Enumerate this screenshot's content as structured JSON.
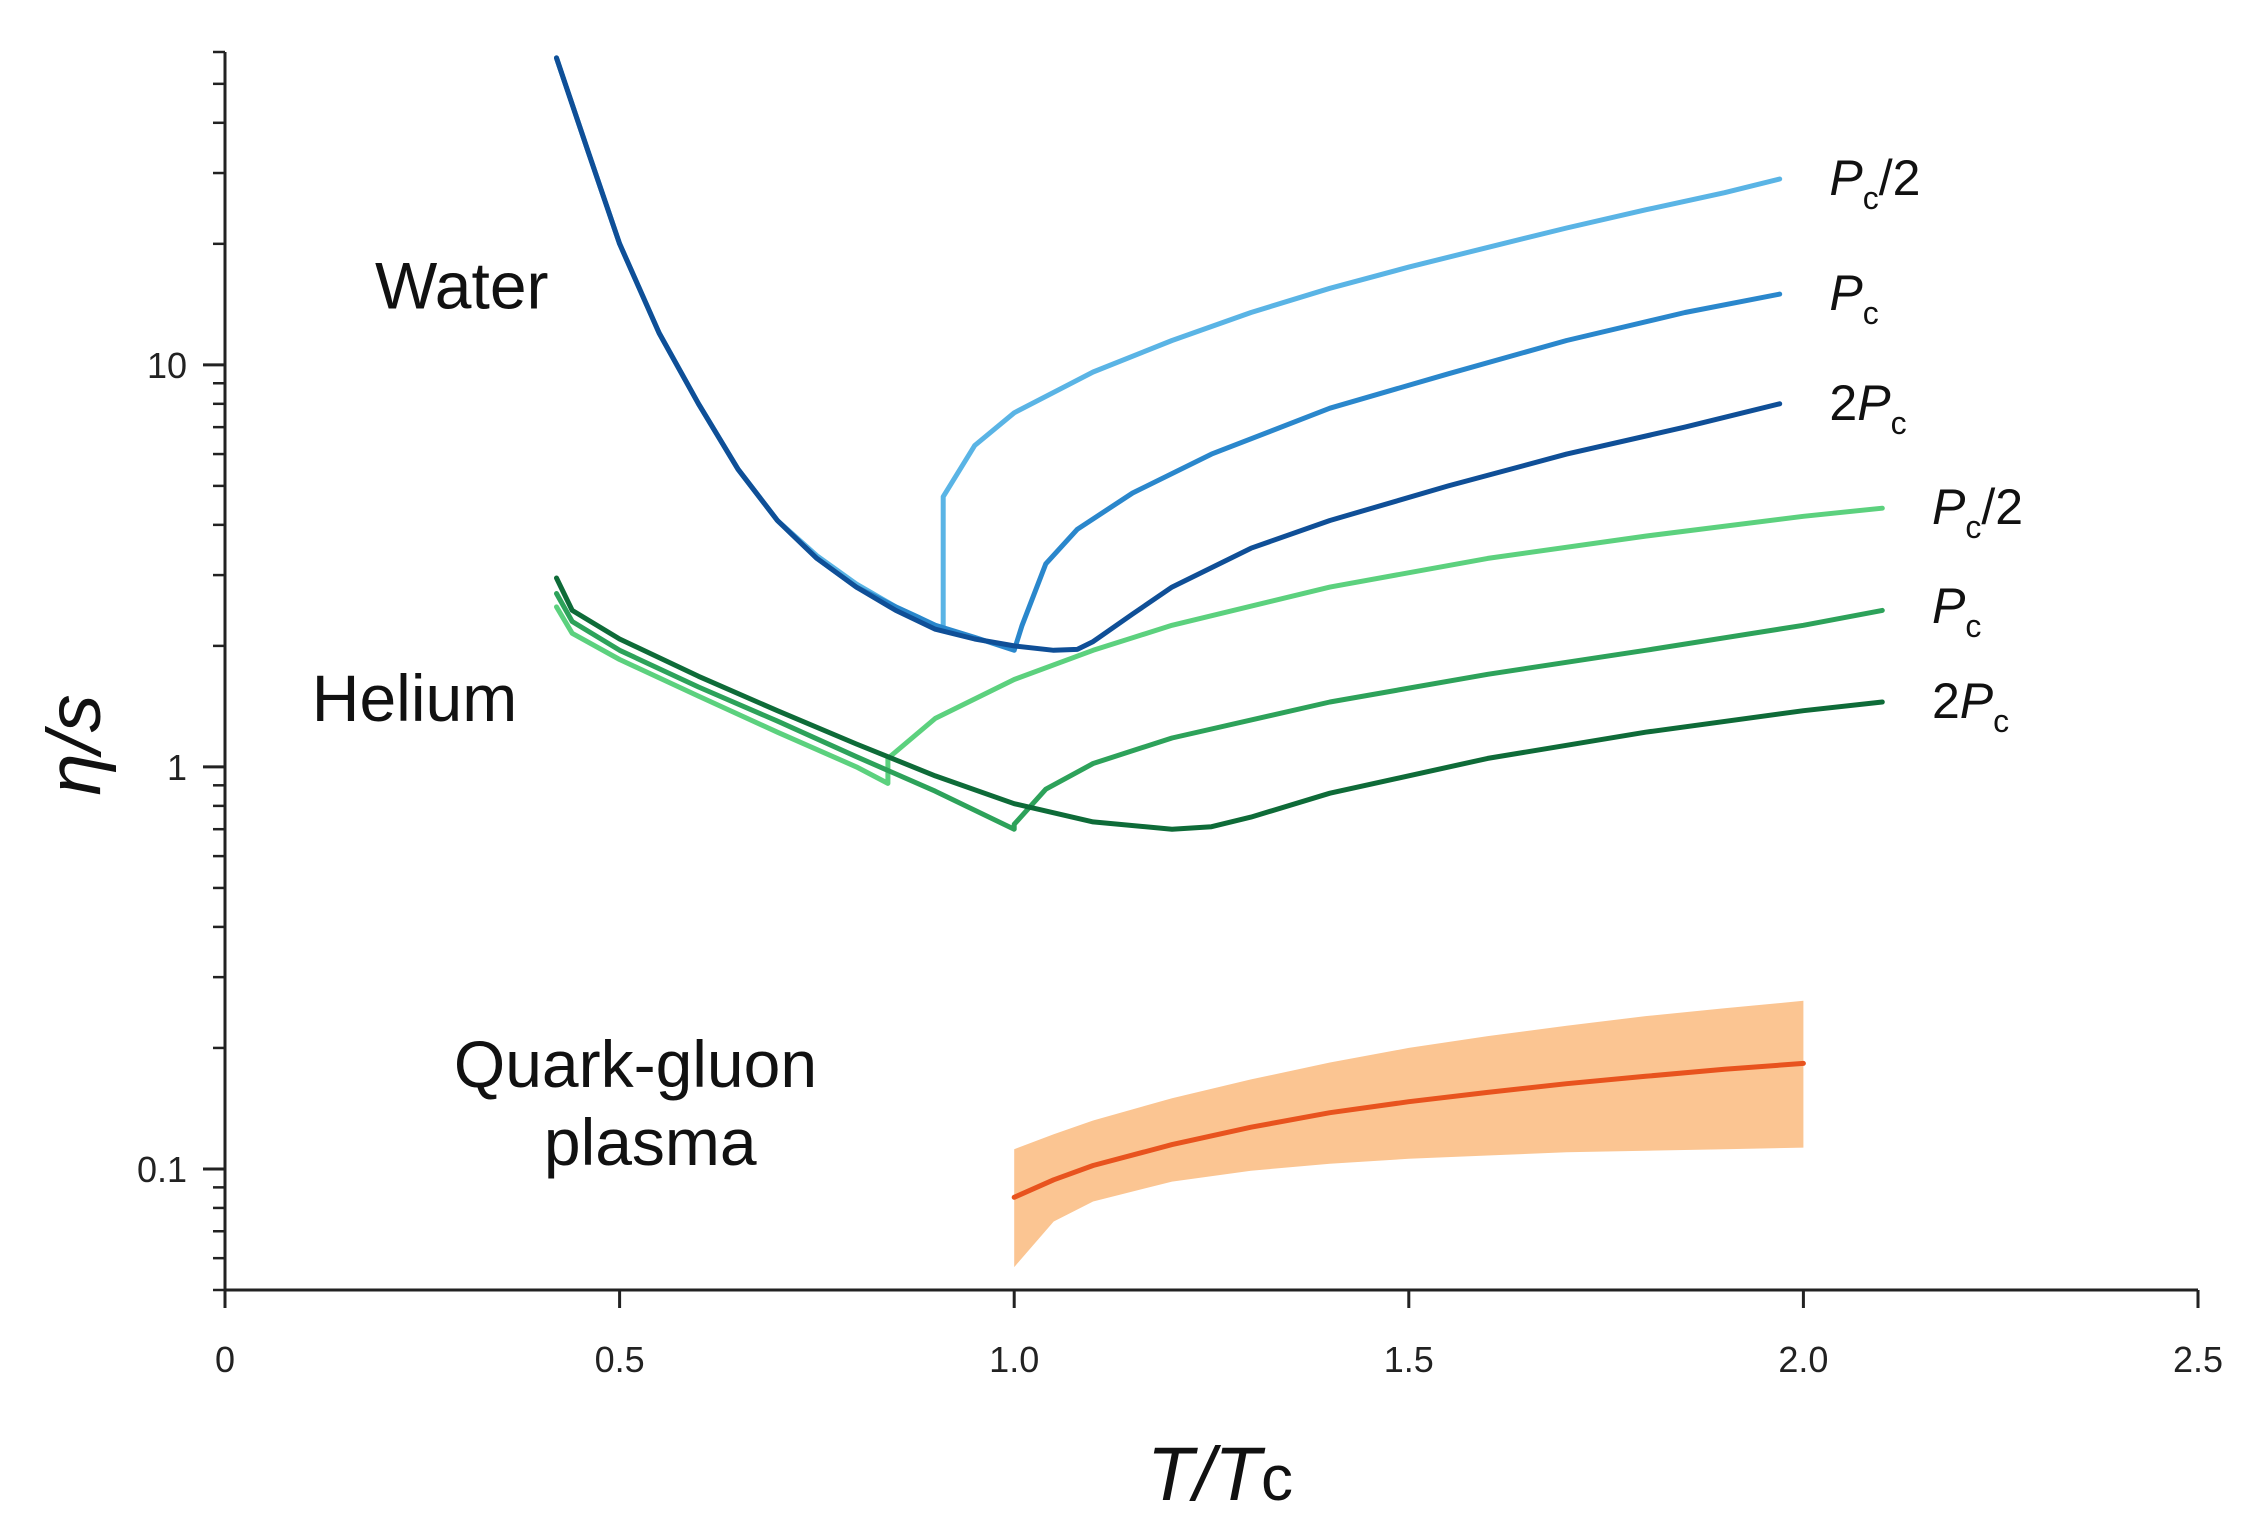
{
  "chart_data": {
    "type": "line",
    "title": "",
    "xlabel": "T/Tc",
    "ylabel": "η/s",
    "y_scale": "log",
    "xlim": [
      0,
      2.5
    ],
    "ylim": [
      0.05,
      60
    ],
    "grid": false,
    "x_ticks": [
      {
        "value": 0,
        "label": "0"
      },
      {
        "value": 0.5,
        "label": "0.5"
      },
      {
        "value": 1.0,
        "label": "1.0"
      },
      {
        "value": 1.5,
        "label": "1.5"
      },
      {
        "value": 2.0,
        "label": "2.0"
      },
      {
        "value": 2.5,
        "label": "2.5"
      }
    ],
    "y_ticks": [
      {
        "value": 0.1,
        "label": "0.1"
      },
      {
        "value": 1,
        "label": "1"
      },
      {
        "value": 10,
        "label": "10"
      }
    ],
    "groups": [
      {
        "name": "Water",
        "label": "Water",
        "anchor": [
          0.19,
          13.8
        ]
      },
      {
        "name": "Helium",
        "label": "Helium",
        "anchor": [
          0.11,
          1.3
        ]
      },
      {
        "name": "Quark-gluon plasma",
        "label_lines": [
          "Quark-gluon",
          "plasma"
        ],
        "anchor": [
          0.29,
          0.16
        ]
      }
    ],
    "series": [
      {
        "name": "Water Pc/2",
        "group": "Water",
        "label": "Pc/2",
        "label_parts": [
          "P",
          "c",
          "/2"
        ],
        "color": "#5ab4e5",
        "label_at": [
          2.0,
          29
        ],
        "x": [
          0.42,
          0.46,
          0.5,
          0.55,
          0.6,
          0.65,
          0.7,
          0.75,
          0.8,
          0.85,
          0.88,
          0.91,
          0.91,
          0.95,
          1.0,
          1.1,
          1.2,
          1.3,
          1.4,
          1.5,
          1.6,
          1.7,
          1.8,
          1.9,
          1.97
        ],
        "y": [
          58,
          34,
          20,
          12,
          8.0,
          5.5,
          4.1,
          3.35,
          2.85,
          2.5,
          2.35,
          2.2,
          4.7,
          6.3,
          7.6,
          9.6,
          11.5,
          13.5,
          15.5,
          17.5,
          19.6,
          21.9,
          24.3,
          26.8,
          29
        ]
      },
      {
        "name": "Water Pc",
        "group": "Water",
        "label": "Pc",
        "label_parts": [
          "P",
          "c",
          ""
        ],
        "color": "#2a87cc",
        "label_at": [
          2.0,
          15
        ],
        "x": [
          0.42,
          0.46,
          0.5,
          0.55,
          0.6,
          0.65,
          0.7,
          0.75,
          0.8,
          0.85,
          0.9,
          0.95,
          1.0,
          1.01,
          1.04,
          1.08,
          1.15,
          1.25,
          1.4,
          1.55,
          1.7,
          1.85,
          1.97
        ],
        "y": [
          58,
          34,
          20,
          12,
          8.0,
          5.5,
          4.1,
          3.3,
          2.8,
          2.5,
          2.25,
          2.1,
          1.95,
          2.25,
          3.2,
          3.9,
          4.8,
          6.0,
          7.8,
          9.5,
          11.5,
          13.5,
          15
        ]
      },
      {
        "name": "Water 2Pc",
        "group": "Water",
        "label": "2Pc",
        "label_parts": [
          "2P",
          "c",
          ""
        ],
        "color": "#0f4f97",
        "label_at": [
          2.0,
          8
        ],
        "x": [
          0.42,
          0.46,
          0.5,
          0.55,
          0.6,
          0.65,
          0.7,
          0.75,
          0.8,
          0.85,
          0.9,
          0.95,
          1.0,
          1.05,
          1.08,
          1.1,
          1.15,
          1.2,
          1.3,
          1.4,
          1.55,
          1.7,
          1.85,
          1.97
        ],
        "y": [
          58,
          34,
          20,
          12,
          8.0,
          5.5,
          4.1,
          3.3,
          2.8,
          2.45,
          2.2,
          2.08,
          2.0,
          1.95,
          1.96,
          2.05,
          2.4,
          2.8,
          3.5,
          4.1,
          5.0,
          6.0,
          7.0,
          8.0
        ]
      },
      {
        "name": "Helium Pc/2",
        "group": "Helium",
        "label": "Pc/2",
        "label_parts": [
          "P",
          "c",
          "/2"
        ],
        "color": "#5cd17e",
        "label_at": [
          2.13,
          4.4
        ],
        "x": [
          0.42,
          0.44,
          0.5,
          0.6,
          0.7,
          0.8,
          0.84,
          0.84,
          0.9,
          1.0,
          1.1,
          1.2,
          1.4,
          1.6,
          1.8,
          2.0,
          2.1
        ],
        "y": [
          2.5,
          2.15,
          1.85,
          1.5,
          1.22,
          1.0,
          0.91,
          1.05,
          1.32,
          1.65,
          1.95,
          2.25,
          2.8,
          3.3,
          3.75,
          4.2,
          4.4
        ]
      },
      {
        "name": "Helium Pc",
        "group": "Helium",
        "label": "Pc",
        "label_parts": [
          "P",
          "c",
          ""
        ],
        "color": "#2da25a",
        "label_at": [
          2.13,
          2.5
        ],
        "x": [
          0.42,
          0.44,
          0.5,
          0.6,
          0.7,
          0.8,
          0.9,
          1.0,
          1.0,
          1.04,
          1.1,
          1.2,
          1.4,
          1.6,
          1.8,
          2.0,
          2.1
        ],
        "y": [
          2.7,
          2.3,
          1.95,
          1.58,
          1.3,
          1.06,
          0.87,
          0.7,
          0.72,
          0.88,
          1.02,
          1.18,
          1.45,
          1.7,
          1.95,
          2.25,
          2.45
        ]
      },
      {
        "name": "Helium 2Pc",
        "group": "Helium",
        "label": "2Pc",
        "label_parts": [
          "2P",
          "c",
          ""
        ],
        "color": "#0e6b38",
        "label_at": [
          2.13,
          1.45
        ],
        "x": [
          0.42,
          0.44,
          0.5,
          0.6,
          0.7,
          0.8,
          0.9,
          1.0,
          1.1,
          1.2,
          1.25,
          1.3,
          1.4,
          1.6,
          1.8,
          2.0,
          2.1
        ],
        "y": [
          2.95,
          2.45,
          2.08,
          1.68,
          1.38,
          1.14,
          0.95,
          0.81,
          0.73,
          0.7,
          0.71,
          0.75,
          0.86,
          1.05,
          1.22,
          1.38,
          1.45
        ]
      },
      {
        "name": "Quark-gluon plasma",
        "group": "Quark-gluon plasma",
        "label": "",
        "color": "#e8531e",
        "band_color": "#fbc592",
        "x": [
          1.0,
          1.05,
          1.1,
          1.2,
          1.3,
          1.4,
          1.5,
          1.6,
          1.7,
          1.8,
          1.9,
          2.0
        ],
        "y": [
          0.085,
          0.094,
          0.102,
          0.115,
          0.127,
          0.138,
          0.147,
          0.155,
          0.163,
          0.17,
          0.177,
          0.183
        ],
        "y_low": [
          0.057,
          0.074,
          0.083,
          0.093,
          0.099,
          0.103,
          0.106,
          0.108,
          0.11,
          0.111,
          0.112,
          0.113
        ],
        "y_high": [
          0.112,
          0.122,
          0.132,
          0.15,
          0.167,
          0.184,
          0.2,
          0.214,
          0.227,
          0.24,
          0.251,
          0.262
        ]
      }
    ]
  }
}
